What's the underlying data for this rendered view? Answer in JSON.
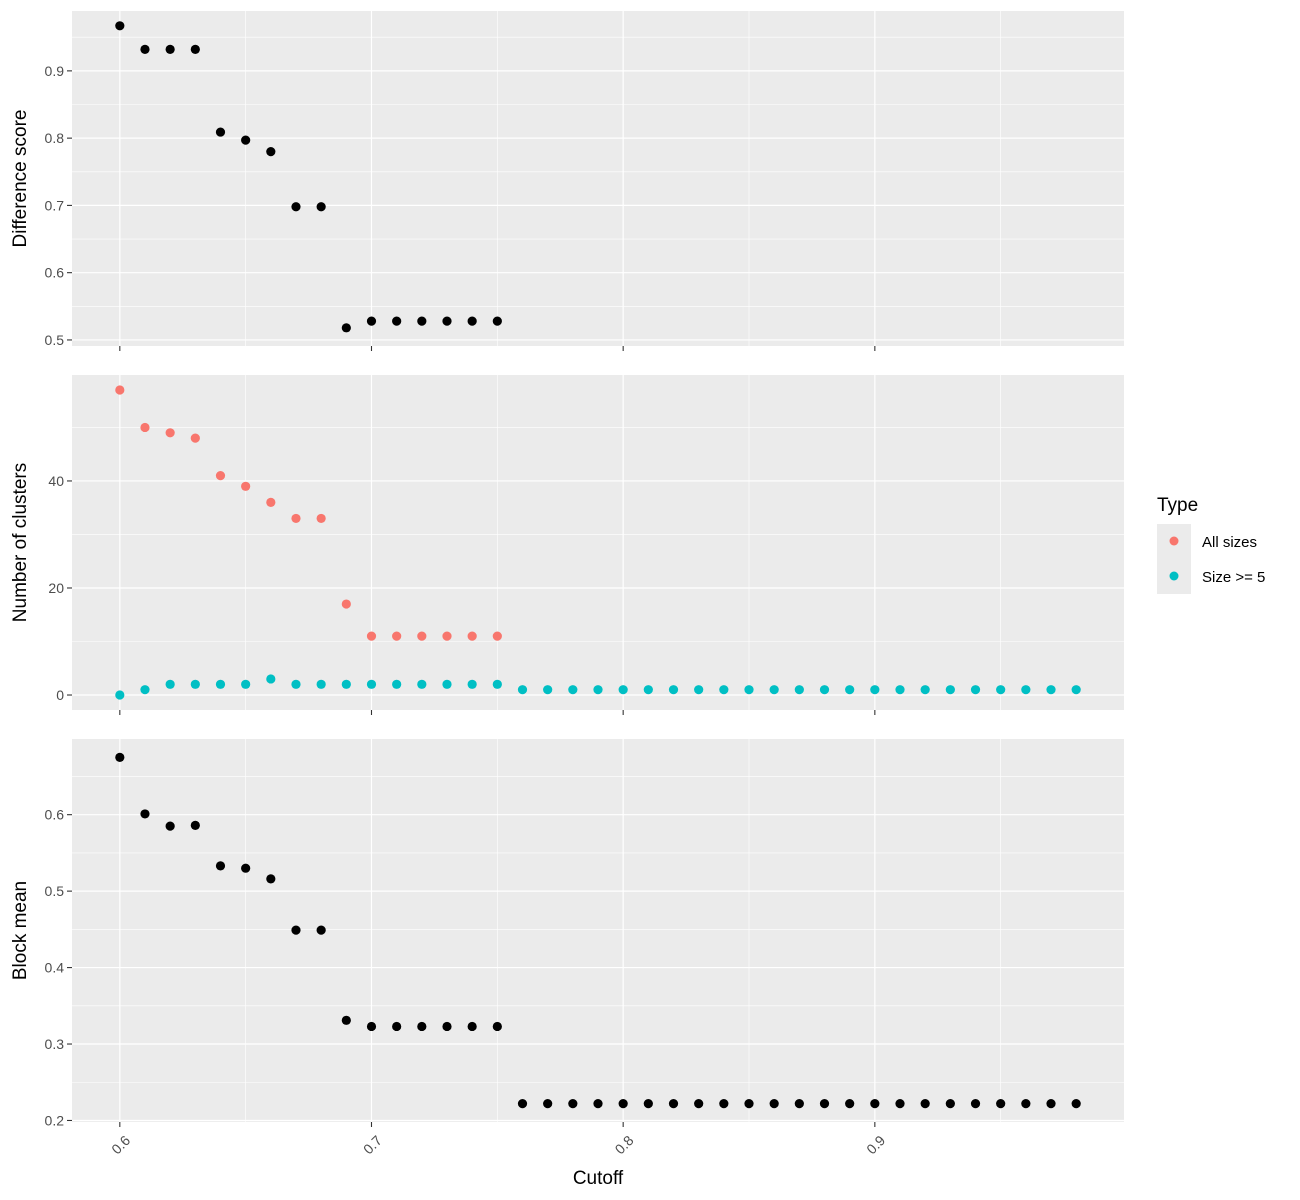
{
  "chart_data": {
    "type": "scatter",
    "xlabel": "Cutoff",
    "xlim": [
      0.581,
      0.999
    ],
    "x_ticks": [
      0.6,
      0.7,
      0.8,
      0.9
    ],
    "x_tick_labels": [
      "0.6",
      "0.7",
      "0.8",
      "0.9"
    ],
    "grid": true,
    "legend": {
      "title": "Type",
      "placement": "right",
      "entries": [
        {
          "name": "All sizes",
          "color": "#F8766D"
        },
        {
          "name": "Size >= 5",
          "color": "#00BFC4"
        }
      ]
    },
    "panels": [
      {
        "ylabel": "Difference score",
        "ylim": [
          0.491,
          0.989
        ],
        "y_ticks": [
          0.5,
          0.6,
          0.7,
          0.8,
          0.9
        ],
        "y_tick_labels": [
          "0.5",
          "0.6",
          "0.7",
          "0.8",
          "0.9"
        ],
        "series": [
          {
            "color": "#000000",
            "x": [
              0.6,
              0.61,
              0.62,
              0.63,
              0.64,
              0.65,
              0.66,
              0.67,
              0.68,
              0.69,
              0.7,
              0.71,
              0.72,
              0.73,
              0.74,
              0.75
            ],
            "y": [
              0.967,
              0.932,
              0.932,
              0.932,
              0.809,
              0.797,
              0.78,
              0.698,
              0.698,
              0.518,
              0.528,
              0.528,
              0.528,
              0.528,
              0.528,
              0.528
            ]
          }
        ]
      },
      {
        "ylabel": "Number of clusters",
        "ylim": [
          -2.8,
          59.8
        ],
        "y_ticks": [
          0,
          20,
          40
        ],
        "y_tick_labels": [
          "0",
          "20",
          "40"
        ],
        "series": [
          {
            "name": "All sizes",
            "color": "#F8766D",
            "x": [
              0.6,
              0.61,
              0.62,
              0.63,
              0.64,
              0.65,
              0.66,
              0.67,
              0.68,
              0.69,
              0.7,
              0.71,
              0.72,
              0.73,
              0.74,
              0.75
            ],
            "y": [
              57,
              50,
              49,
              48,
              41,
              39,
              36,
              33,
              33,
              17,
              11,
              11,
              11,
              11,
              11,
              11
            ]
          },
          {
            "name": "Size >= 5",
            "color": "#00BFC4",
            "x": [
              0.6,
              0.61,
              0.62,
              0.63,
              0.64,
              0.65,
              0.66,
              0.67,
              0.68,
              0.69,
              0.7,
              0.71,
              0.72,
              0.73,
              0.74,
              0.75,
              0.76,
              0.77,
              0.78,
              0.79,
              0.8,
              0.81,
              0.82,
              0.83,
              0.84,
              0.85,
              0.86,
              0.87,
              0.88,
              0.89,
              0.9,
              0.91,
              0.92,
              0.93,
              0.94,
              0.95,
              0.96,
              0.97,
              0.98
            ],
            "y": [
              0,
              1,
              2,
              2,
              2,
              2,
              3,
              2,
              2,
              2,
              2,
              2,
              2,
              2,
              2,
              2,
              1,
              1,
              1,
              1,
              1,
              1,
              1,
              1,
              1,
              1,
              1,
              1,
              1,
              1,
              1,
              1,
              1,
              1,
              1,
              1,
              1,
              1,
              1
            ]
          }
        ]
      },
      {
        "ylabel": "Block mean",
        "ylim": [
          0.198,
          0.699
        ],
        "y_ticks": [
          0.2,
          0.3,
          0.4,
          0.5,
          0.6
        ],
        "y_tick_labels": [
          "0.2",
          "0.3",
          "0.4",
          "0.5",
          "0.6"
        ],
        "series": [
          {
            "color": "#000000",
            "x": [
              0.6,
              0.61,
              0.62,
              0.63,
              0.64,
              0.65,
              0.66,
              0.67,
              0.68,
              0.69,
              0.7,
              0.71,
              0.72,
              0.73,
              0.74,
              0.75,
              0.76,
              0.77,
              0.78,
              0.79,
              0.8,
              0.81,
              0.82,
              0.83,
              0.84,
              0.85,
              0.86,
              0.87,
              0.88,
              0.89,
              0.9,
              0.91,
              0.92,
              0.93,
              0.94,
              0.95,
              0.96,
              0.97,
              0.98
            ],
            "y": [
              0.675,
              0.601,
              0.585,
              0.586,
              0.533,
              0.53,
              0.516,
              0.449,
              0.449,
              0.331,
              0.323,
              0.323,
              0.323,
              0.323,
              0.323,
              0.323,
              0.222,
              0.222,
              0.222,
              0.222,
              0.222,
              0.222,
              0.222,
              0.222,
              0.222,
              0.222,
              0.222,
              0.222,
              0.222,
              0.222,
              0.222,
              0.222,
              0.222,
              0.222,
              0.222,
              0.222,
              0.222,
              0.222,
              0.222
            ]
          }
        ]
      }
    ]
  }
}
